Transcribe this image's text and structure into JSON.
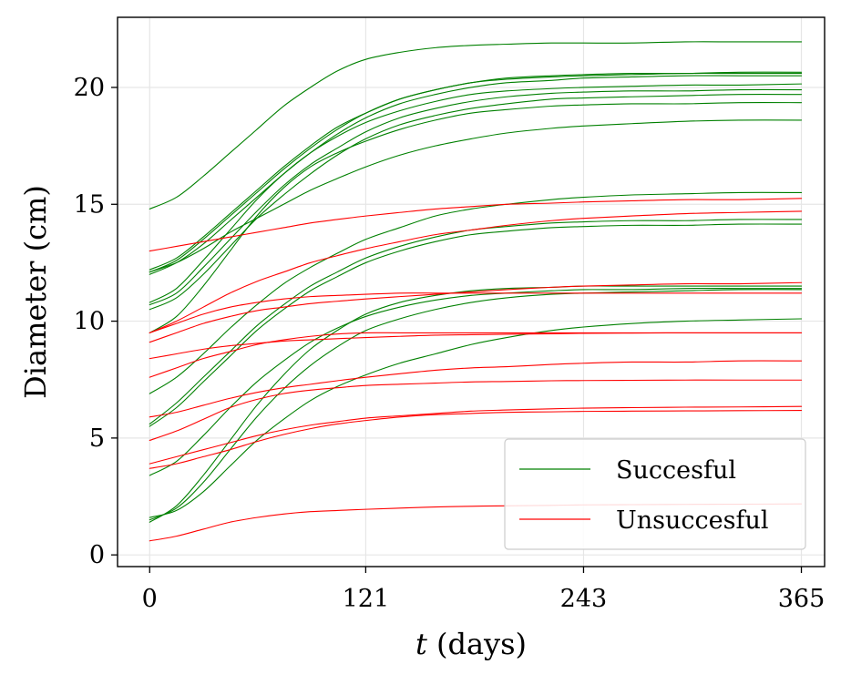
{
  "chart_data": {
    "type": "line",
    "xlabel_italic": "t",
    "xlabel_rest": " (days)",
    "ylabel": "Diameter (cm)",
    "xlim": [
      -18,
      378
    ],
    "ylim": [
      -0.5,
      23.0
    ],
    "xticks": [
      0,
      121,
      243,
      365
    ],
    "yticks": [
      0,
      5,
      10,
      15,
      20
    ],
    "grid": true,
    "legend": {
      "placement": "bottom-right",
      "entries": [
        {
          "label": "Succesful",
          "color": "#008000"
        },
        {
          "label": "Unsuccesful",
          "color": "#ff0000"
        }
      ]
    },
    "x": [
      0,
      15,
      30,
      45,
      60,
      75,
      90,
      105,
      121,
      140,
      160,
      180,
      200,
      225,
      243,
      270,
      300,
      330,
      365
    ],
    "series": [
      {
        "group": "Succesful",
        "color": "#008000",
        "values": [
          14.8,
          15.3,
          16.2,
          17.2,
          18.2,
          19.2,
          20.0,
          20.7,
          21.2,
          21.5,
          21.7,
          21.8,
          21.85,
          21.9,
          21.9,
          21.9,
          21.95,
          21.95,
          21.95
        ]
      },
      {
        "group": "Succesful",
        "color": "#008000",
        "values": [
          12.2,
          12.7,
          13.6,
          14.6,
          15.6,
          16.6,
          17.5,
          18.3,
          18.9,
          19.5,
          19.9,
          20.2,
          20.4,
          20.5,
          20.55,
          20.6,
          20.6,
          20.65,
          20.65
        ]
      },
      {
        "group": "Succesful",
        "color": "#008000",
        "values": [
          12.1,
          12.6,
          13.5,
          14.5,
          15.5,
          16.5,
          17.4,
          18.2,
          18.9,
          19.5,
          19.9,
          20.2,
          20.35,
          20.45,
          20.5,
          20.55,
          20.6,
          20.6,
          20.6
        ]
      },
      {
        "group": "Succesful",
        "color": "#008000",
        "values": [
          12.0,
          12.5,
          13.3,
          14.3,
          15.3,
          16.3,
          17.2,
          18.0,
          18.7,
          19.3,
          19.7,
          20.0,
          20.2,
          20.3,
          20.4,
          20.45,
          20.5,
          20.5,
          20.5
        ]
      },
      {
        "group": "Succesful",
        "color": "#008000",
        "values": [
          10.8,
          11.4,
          12.6,
          13.9,
          15.2,
          16.3,
          17.2,
          17.9,
          18.5,
          19.0,
          19.4,
          19.7,
          19.85,
          19.95,
          20.0,
          20.05,
          20.1,
          20.1,
          20.15
        ]
      },
      {
        "group": "Succesful",
        "color": "#008000",
        "values": [
          10.7,
          11.2,
          12.3,
          13.5,
          14.7,
          15.8,
          16.7,
          17.4,
          18.1,
          18.7,
          19.1,
          19.4,
          19.6,
          19.75,
          19.8,
          19.85,
          19.85,
          19.9,
          19.9
        ]
      },
      {
        "group": "Succesful",
        "color": "#008000",
        "values": [
          10.5,
          11.0,
          12.0,
          13.2,
          14.4,
          15.4,
          16.3,
          17.1,
          17.8,
          18.4,
          18.8,
          19.1,
          19.3,
          19.5,
          19.55,
          19.6,
          19.65,
          19.7,
          19.7
        ]
      },
      {
        "group": "Succesful",
        "color": "#008000",
        "values": [
          9.5,
          10.2,
          11.5,
          13.0,
          14.5,
          15.7,
          16.6,
          17.2,
          17.7,
          18.2,
          18.6,
          18.9,
          19.05,
          19.2,
          19.25,
          19.3,
          19.3,
          19.35,
          19.35
        ]
      },
      {
        "group": "Succesful",
        "color": "#008000",
        "values": [
          12.1,
          12.5,
          13.1,
          13.8,
          14.4,
          15.0,
          15.6,
          16.1,
          16.6,
          17.1,
          17.5,
          17.8,
          18.05,
          18.25,
          18.35,
          18.45,
          18.55,
          18.6,
          18.6
        ]
      },
      {
        "group": "Succesful",
        "color": "#008000",
        "values": [
          6.9,
          7.6,
          8.6,
          9.7,
          10.7,
          11.6,
          12.3,
          12.9,
          13.5,
          14.0,
          14.5,
          14.8,
          15.0,
          15.2,
          15.3,
          15.4,
          15.45,
          15.5,
          15.5
        ]
      },
      {
        "group": "Succesful",
        "color": "#008000",
        "values": [
          5.6,
          6.5,
          7.6,
          8.7,
          9.8,
          10.7,
          11.5,
          12.1,
          12.7,
          13.2,
          13.6,
          13.9,
          14.05,
          14.2,
          14.25,
          14.3,
          14.3,
          14.35,
          14.35
        ]
      },
      {
        "group": "Succesful",
        "color": "#008000",
        "values": [
          5.5,
          6.3,
          7.4,
          8.5,
          9.6,
          10.5,
          11.3,
          11.9,
          12.5,
          13.0,
          13.4,
          13.7,
          13.85,
          14.0,
          14.05,
          14.1,
          14.1,
          14.15,
          14.15
        ]
      },
      {
        "group": "Succesful",
        "color": "#008000",
        "values": [
          3.4,
          4.0,
          5.1,
          6.3,
          7.4,
          8.3,
          9.1,
          9.7,
          10.2,
          10.6,
          10.9,
          11.1,
          11.2,
          11.3,
          11.35,
          11.35,
          11.4,
          11.4,
          11.4
        ]
      },
      {
        "group": "Succesful",
        "color": "#008000",
        "values": [
          1.6,
          1.9,
          2.7,
          3.8,
          4.9,
          5.8,
          6.6,
          7.2,
          7.7,
          8.2,
          8.6,
          9.0,
          9.3,
          9.6,
          9.75,
          9.9,
          10.0,
          10.05,
          10.1
        ]
      },
      {
        "group": "Succesful",
        "color": "#008000",
        "values": [
          1.5,
          2.0,
          3.1,
          4.5,
          5.9,
          7.1,
          8.1,
          8.9,
          9.6,
          10.1,
          10.5,
          10.8,
          11.0,
          11.15,
          11.2,
          11.25,
          11.3,
          11.35,
          11.35
        ]
      },
      {
        "group": "Succesful",
        "color": "#008000",
        "values": [
          1.4,
          2.1,
          3.4,
          4.9,
          6.4,
          7.7,
          8.8,
          9.6,
          10.3,
          10.8,
          11.1,
          11.3,
          11.4,
          11.45,
          11.5,
          11.5,
          11.5,
          11.5,
          11.5
        ]
      },
      {
        "group": "Unsuccesful",
        "color": "#ff0000",
        "values": [
          13.0,
          13.2,
          13.4,
          13.6,
          13.8,
          14.0,
          14.2,
          14.35,
          14.5,
          14.65,
          14.8,
          14.9,
          15.0,
          15.05,
          15.1,
          15.15,
          15.2,
          15.2,
          15.25
        ]
      },
      {
        "group": "Unsuccesful",
        "color": "#ff0000",
        "values": [
          9.5,
          10.0,
          10.6,
          11.2,
          11.7,
          12.1,
          12.5,
          12.8,
          13.1,
          13.4,
          13.7,
          13.9,
          14.1,
          14.3,
          14.4,
          14.5,
          14.6,
          14.65,
          14.7
        ]
      },
      {
        "group": "Unsuccesful",
        "color": "#ff0000",
        "values": [
          9.5,
          9.9,
          10.3,
          10.6,
          10.8,
          10.95,
          11.05,
          11.1,
          11.15,
          11.2,
          11.2,
          11.2,
          11.2,
          11.2,
          11.2,
          11.2,
          11.2,
          11.2,
          11.2
        ]
      },
      {
        "group": "Unsuccesful",
        "color": "#ff0000",
        "values": [
          9.1,
          9.5,
          9.9,
          10.2,
          10.45,
          10.6,
          10.75,
          10.85,
          10.95,
          11.05,
          11.15,
          11.25,
          11.35,
          11.45,
          11.5,
          11.55,
          11.6,
          11.6,
          11.65
        ]
      },
      {
        "group": "Unsuccesful",
        "color": "#ff0000",
        "values": [
          8.4,
          8.6,
          8.8,
          8.95,
          9.05,
          9.15,
          9.2,
          9.25,
          9.3,
          9.35,
          9.4,
          9.42,
          9.44,
          9.46,
          9.48,
          9.49,
          9.5,
          9.5,
          9.5
        ]
      },
      {
        "group": "Unsuccesful",
        "color": "#ff0000",
        "values": [
          7.6,
          8.0,
          8.4,
          8.7,
          9.0,
          9.2,
          9.35,
          9.45,
          9.5,
          9.5,
          9.5,
          9.5,
          9.5,
          9.5,
          9.5,
          9.5,
          9.5,
          9.5,
          9.5
        ]
      },
      {
        "group": "Unsuccesful",
        "color": "#ff0000",
        "values": [
          5.9,
          6.1,
          6.4,
          6.7,
          6.95,
          7.15,
          7.3,
          7.45,
          7.6,
          7.75,
          7.9,
          8.0,
          8.05,
          8.15,
          8.2,
          8.25,
          8.25,
          8.3,
          8.3
        ]
      },
      {
        "group": "Unsuccesful",
        "color": "#ff0000",
        "values": [
          4.9,
          5.3,
          5.8,
          6.3,
          6.65,
          6.9,
          7.05,
          7.15,
          7.25,
          7.3,
          7.35,
          7.4,
          7.42,
          7.45,
          7.46,
          7.47,
          7.48,
          7.48,
          7.48
        ]
      },
      {
        "group": "Unsuccesful",
        "color": "#ff0000",
        "values": [
          3.9,
          4.2,
          4.5,
          4.8,
          5.1,
          5.35,
          5.55,
          5.7,
          5.85,
          5.95,
          6.05,
          6.15,
          6.2,
          6.25,
          6.28,
          6.3,
          6.32,
          6.33,
          6.35
        ]
      },
      {
        "group": "Unsuccesful",
        "color": "#ff0000",
        "values": [
          3.7,
          3.9,
          4.2,
          4.5,
          4.85,
          5.15,
          5.4,
          5.6,
          5.75,
          5.9,
          6.0,
          6.05,
          6.1,
          6.12,
          6.14,
          6.15,
          6.16,
          6.17,
          6.18
        ]
      },
      {
        "group": "Unsuccesful",
        "color": "#ff0000",
        "values": [
          0.6,
          0.8,
          1.1,
          1.4,
          1.6,
          1.75,
          1.85,
          1.9,
          1.95,
          2.0,
          2.05,
          2.08,
          2.1,
          2.12,
          2.14,
          2.15,
          2.16,
          2.17,
          2.18
        ]
      }
    ]
  }
}
